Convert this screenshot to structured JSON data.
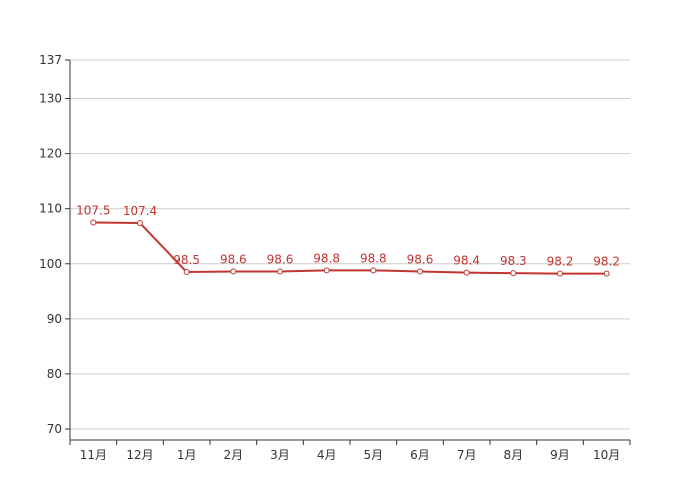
{
  "chart_data": {
    "type": "line",
    "categories": [
      "11月",
      "12月",
      "1月",
      "2月",
      "3月",
      "4月",
      "5月",
      "6月",
      "7月",
      "8月",
      "9月",
      "10月"
    ],
    "series": [
      {
        "values": [
          107.5,
          107.4,
          98.5,
          98.6,
          98.6,
          98.8,
          98.8,
          98.6,
          98.4,
          98.3,
          98.2,
          98.2
        ]
      }
    ],
    "y_ticks": [
      70,
      80,
      90,
      100,
      110,
      120,
      130,
      137
    ],
    "ylim": [
      68,
      137
    ],
    "grid": true,
    "line_color": "#c23531",
    "show_data_labels": true
  }
}
